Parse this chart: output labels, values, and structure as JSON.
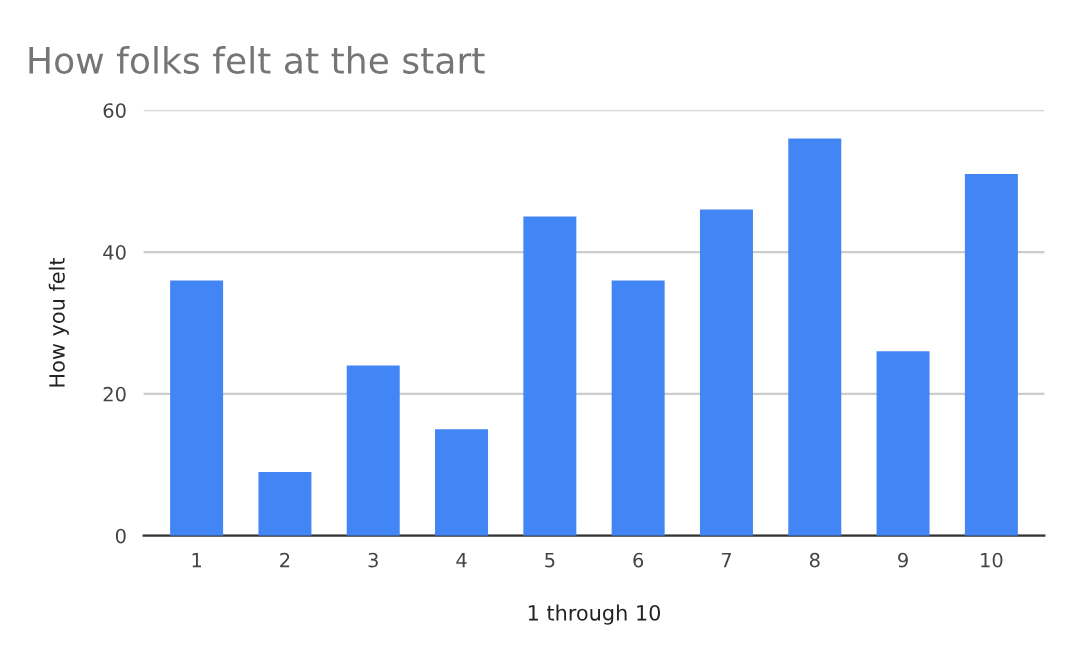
{
  "chart_data": {
    "type": "bar",
    "title": "How folks felt at the start",
    "xlabel": "1 through 10",
    "ylabel": "How you felt",
    "categories": [
      "1",
      "2",
      "3",
      "4",
      "5",
      "6",
      "7",
      "8",
      "9",
      "10"
    ],
    "values": [
      36,
      9,
      24,
      15,
      45,
      36,
      46,
      56,
      26,
      51
    ],
    "color": "#4285f4",
    "ylim": [
      0,
      60
    ],
    "yticks": [
      0,
      20,
      40,
      60
    ],
    "grid": "y",
    "legend": false
  }
}
